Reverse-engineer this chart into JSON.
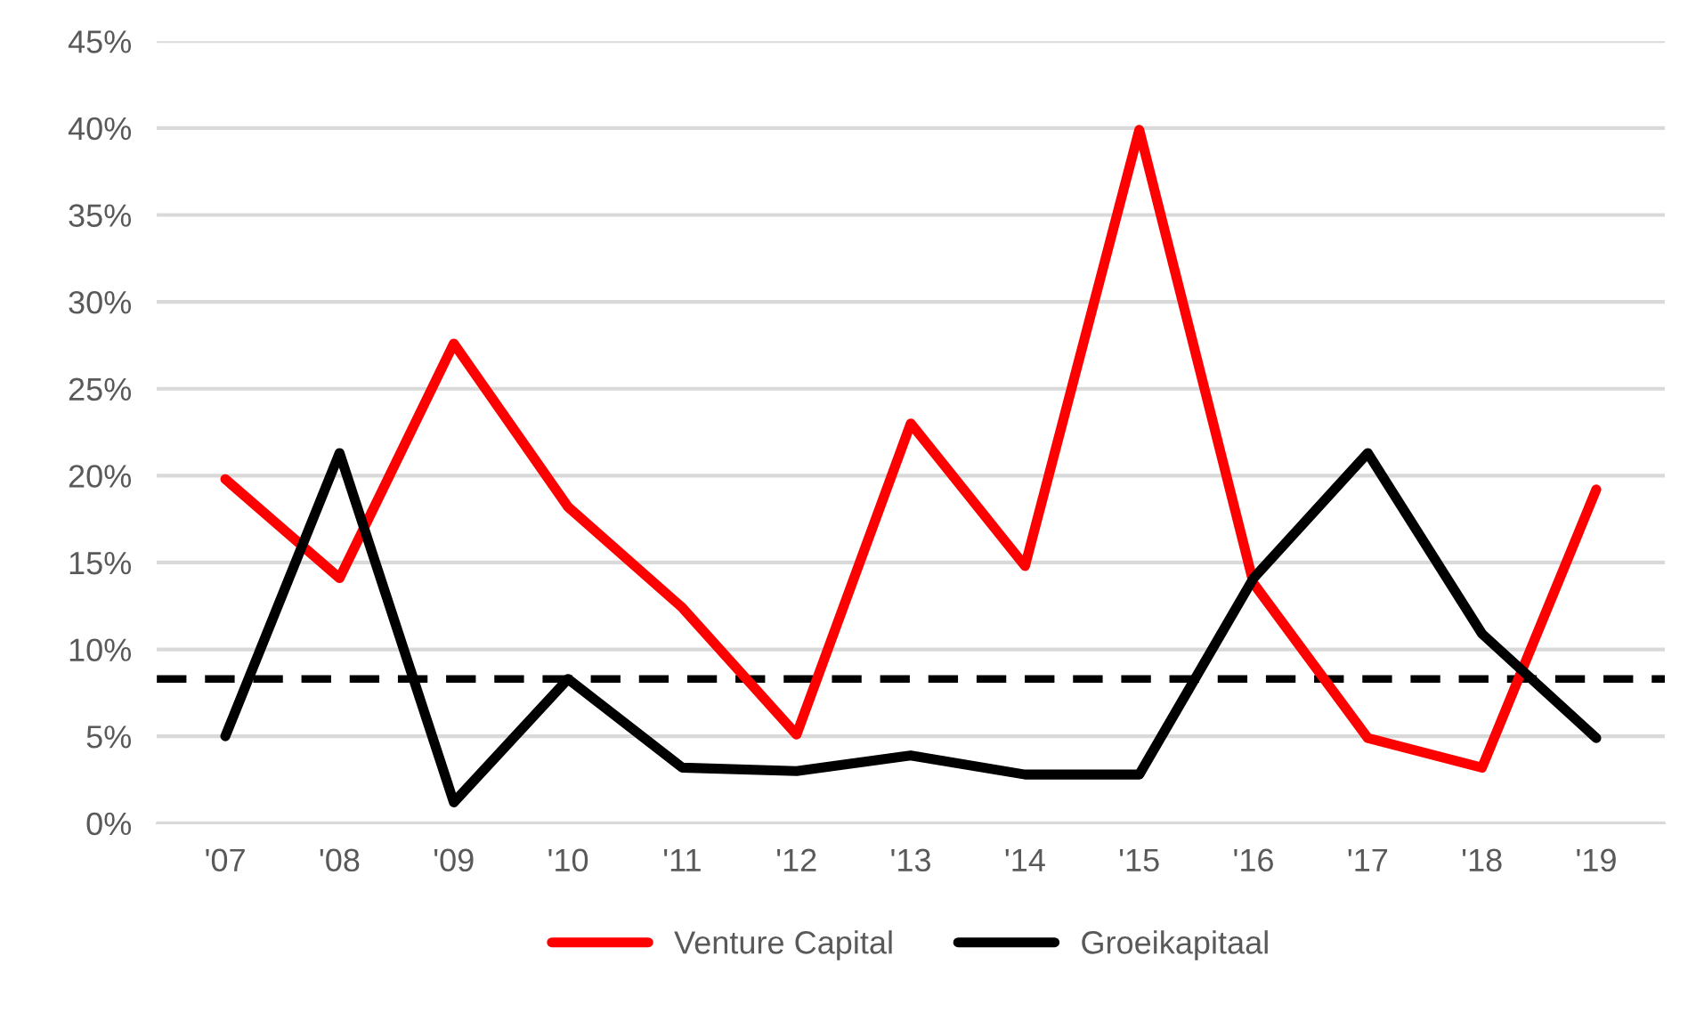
{
  "chart_data": {
    "type": "line",
    "categories": [
      "'07",
      "'08",
      "'09",
      "'10",
      "'11",
      "'12",
      "'13",
      "'14",
      "'15",
      "'16",
      "'17",
      "'18",
      "'19"
    ],
    "series": [
      {
        "name": "Venture Capital",
        "color": "#ff0000",
        "values": [
          19.8,
          14.1,
          27.6,
          18.2,
          12.4,
          5.1,
          23.0,
          14.8,
          39.9,
          13.8,
          4.9,
          3.2,
          19.2
        ]
      },
      {
        "name": "Groeikapitaal",
        "color": "#000000",
        "values": [
          5.0,
          21.3,
          1.2,
          8.3,
          3.2,
          3.0,
          3.9,
          2.8,
          2.8,
          14.1,
          21.3,
          10.9,
          4.9
        ]
      }
    ],
    "ylim": [
      0,
      45
    ],
    "yticks": [
      {
        "value": 0,
        "label": "0%"
      },
      {
        "value": 5,
        "label": "5%"
      },
      {
        "value": 10,
        "label": "10%"
      },
      {
        "value": 15,
        "label": "15%"
      },
      {
        "value": 20,
        "label": "20%"
      },
      {
        "value": 25,
        "label": "25%"
      },
      {
        "value": 30,
        "label": "30%"
      },
      {
        "value": 35,
        "label": "35%"
      },
      {
        "value": 40,
        "label": "40%"
      },
      {
        "value": 45,
        "label": "45%"
      }
    ],
    "ref_lines": [
      {
        "axis": "y",
        "value": 8.3,
        "color": "#000000",
        "line_style": "dashed"
      }
    ],
    "grid": "y",
    "legend": "bottom",
    "marker": "none",
    "line_style": "solid"
  }
}
